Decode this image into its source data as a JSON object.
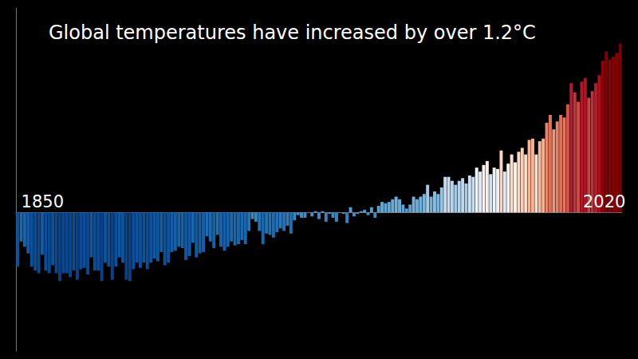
{
  "chart_data": {
    "type": "bar",
    "title": "Global temperatures have increased by over 1.2°C",
    "categories": [
      null,
      null,
      null,
      null,
      null,
      null,
      null,
      null,
      null,
      null,
      null,
      null,
      null,
      null,
      null,
      null,
      null,
      null,
      null,
      null,
      null,
      null,
      null,
      null,
      null,
      null,
      null,
      null,
      null,
      null,
      null,
      null,
      null,
      null,
      null,
      null,
      null,
      null,
      null,
      null,
      null,
      null,
      null,
      null,
      null,
      null,
      null,
      null,
      null,
      null,
      null,
      null,
      null,
      null,
      null,
      null,
      null,
      null,
      null,
      null,
      null,
      null,
      null,
      null,
      null,
      null,
      null,
      null,
      null,
      null,
      null,
      null,
      null,
      null,
      null,
      null,
      null,
      null,
      null,
      null,
      null,
      null,
      null,
      null,
      null,
      null,
      null,
      null,
      null,
      null,
      null,
      null,
      null,
      null,
      null,
      null,
      null,
      null,
      null,
      null,
      null,
      null,
      null,
      null,
      null,
      null,
      null,
      null,
      null,
      null,
      null,
      null,
      null,
      null,
      null,
      null,
      null,
      null,
      null,
      null,
      null,
      null,
      null,
      null,
      null,
      null,
      null,
      null,
      null,
      null,
      null,
      null,
      null,
      null,
      null,
      null,
      null,
      null,
      null,
      null,
      null,
      null,
      null,
      null,
      null,
      null,
      null,
      null,
      null,
      null,
      null,
      null,
      null,
      null,
      null,
      null,
      null,
      null,
      null,
      null,
      null,
      null,
      null,
      null,
      null,
      null,
      null,
      null,
      null,
      null,
      null,
      null,
      null
    ],
    "values": [
      -0.41,
      -0.22,
      -0.26,
      -0.31,
      -0.41,
      -0.44,
      -0.46,
      -0.32,
      -0.44,
      -0.46,
      -0.4,
      -0.46,
      -0.52,
      -0.46,
      -0.46,
      -0.49,
      -0.44,
      -0.51,
      -0.43,
      -0.42,
      -0.47,
      -0.34,
      -0.44,
      -0.44,
      -0.52,
      -0.38,
      -0.41,
      -0.51,
      -0.41,
      -0.34,
      -0.38,
      -0.51,
      -0.52,
      -0.43,
      -0.38,
      -0.42,
      -0.38,
      -0.43,
      -0.38,
      -0.35,
      -0.37,
      -0.3,
      -0.4,
      -0.38,
      -0.3,
      -0.29,
      -0.26,
      -0.27,
      -0.36,
      -0.33,
      -0.23,
      -0.34,
      -0.31,
      -0.3,
      -0.18,
      -0.22,
      -0.27,
      -0.17,
      -0.26,
      -0.29,
      -0.26,
      -0.22,
      -0.25,
      -0.24,
      -0.21,
      -0.24,
      -0.14,
      -0.05,
      -0.07,
      -0.14,
      -0.24,
      -0.16,
      -0.17,
      -0.19,
      -0.15,
      -0.12,
      -0.14,
      -0.1,
      -0.16,
      -0.06,
      -0.02,
      -0.04,
      -0.04,
      0.0,
      -0.03,
      0.01,
      -0.05,
      0.01,
      -0.07,
      -0.01,
      -0.04,
      -0.07,
      0.0,
      -0.01,
      -0.08,
      0.04,
      -0.03,
      -0.01,
      0.01,
      0.02,
      -0.02,
      0.04,
      -0.04,
      0.05,
      0.08,
      0.07,
      0.08,
      0.1,
      0.12,
      0.1,
      0.06,
      0.03,
      0.06,
      0.12,
      0.1,
      0.12,
      0.14,
      0.21,
      0.12,
      0.16,
      0.14,
      0.19,
      0.27,
      0.27,
      0.24,
      0.21,
      0.24,
      0.26,
      0.22,
      0.28,
      0.27,
      0.34,
      0.31,
      0.36,
      0.39,
      0.29,
      0.34,
      0.33,
      0.47,
      0.31,
      0.37,
      0.44,
      0.38,
      0.46,
      0.49,
      0.44,
      0.55,
      0.56,
      0.44,
      0.54,
      0.56,
      0.68,
      0.74,
      0.63,
      0.69,
      0.74,
      0.72,
      0.82,
      0.98,
      0.91,
      0.84,
      0.99,
      1.02,
      0.87,
      0.92,
      0.98,
      1.04,
      1.15,
      1.22,
      1.16,
      1.18,
      1.21,
      1.28
    ],
    "ylim": [
      -1.05,
      1.55
    ],
    "yticks": [],
    "grid": false,
    "tick_labels": false,
    "annotations": [
      "1850",
      "2020"
    ],
    "color_range": [
      -0.65,
      1.35
    ]
  }
}
